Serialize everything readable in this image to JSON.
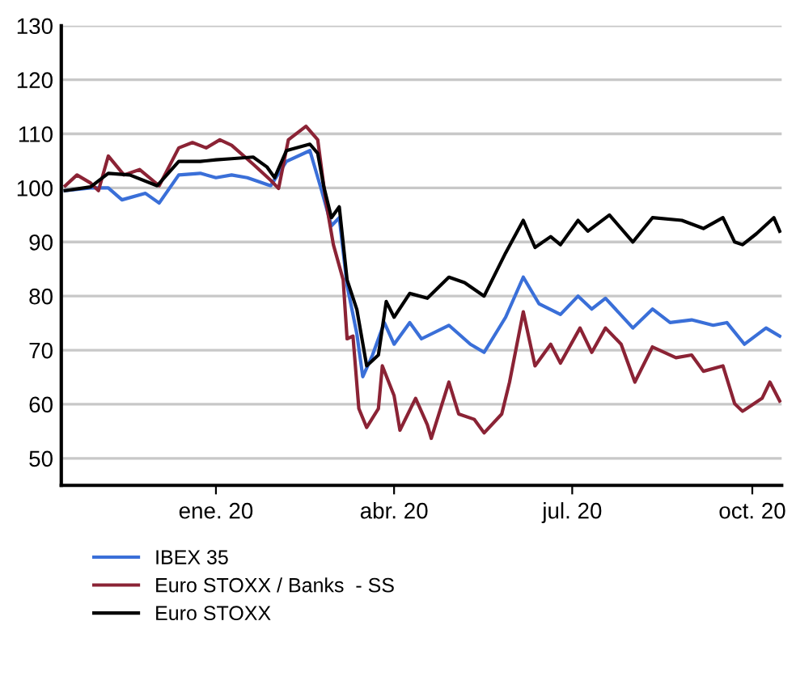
{
  "chart_data": {
    "type": "line",
    "xlim": [
      "2019-10-14",
      "2020-10-16"
    ],
    "xticks": [
      {
        "value": "2020-01-01",
        "label": "ene. 20"
      },
      {
        "value": "2020-04-01",
        "label": "abr. 20"
      },
      {
        "value": "2020-07-01",
        "label": "jul. 20"
      },
      {
        "value": "2020-10-01",
        "label": "oct. 20"
      }
    ],
    "ylim": [
      45,
      130
    ],
    "yticks": [
      50,
      60,
      70,
      80,
      90,
      100,
      110,
      120,
      130
    ],
    "grid": "y",
    "legend": "bottom left",
    "marker": "none",
    "line_style": "solid",
    "series": [
      {
        "name": "IBEX 35",
        "color": "#3a6fd8",
        "x": [
          "2019-10-16",
          "2019-10-29",
          "2019-11-07",
          "2019-11-14",
          "2019-11-26",
          "2019-12-03",
          "2019-12-13",
          "2019-12-24",
          "2020-01-01",
          "2020-01-09",
          "2020-01-17",
          "2020-01-29",
          "2020-02-06",
          "2020-02-18",
          "2020-02-24",
          "2020-02-29",
          "2020-03-04",
          "2020-03-08",
          "2020-03-13",
          "2020-03-16",
          "2020-03-21",
          "2020-03-27",
          "2020-04-01",
          "2020-04-09",
          "2020-04-15",
          "2020-04-29",
          "2020-05-10",
          "2020-05-17",
          "2020-05-28",
          "2020-06-06",
          "2020-06-14",
          "2020-06-25",
          "2020-07-04",
          "2020-07-11",
          "2020-07-18",
          "2020-08-01",
          "2020-08-11",
          "2020-08-20",
          "2020-08-31",
          "2020-09-11",
          "2020-09-18",
          "2020-09-27",
          "2020-10-08",
          "2020-10-15"
        ],
        "values": [
          99.5,
          100.0,
          100.0,
          97.8,
          99.0,
          97.2,
          102.4,
          102.7,
          101.9,
          102.4,
          101.9,
          100.4,
          104.9,
          106.9,
          99.5,
          93.0,
          94.5,
          82.0,
          73.0,
          65.1,
          69.1,
          75.1,
          71.1,
          75.1,
          72.1,
          74.6,
          71.1,
          69.6,
          76.1,
          83.5,
          78.6,
          76.6,
          80.0,
          77.6,
          79.6,
          74.1,
          77.6,
          75.1,
          75.6,
          74.6,
          75.1,
          71.1,
          74.1,
          72.6
        ]
      },
      {
        "name": "Euro STOXX / Banks  - SS",
        "color": "#8b2335",
        "x": [
          "2019-10-16",
          "2019-10-22",
          "2019-10-29",
          "2019-11-02",
          "2019-11-07",
          "2019-11-15",
          "2019-11-23",
          "2019-12-03",
          "2019-12-13",
          "2019-12-20",
          "2019-12-27",
          "2020-01-03",
          "2020-01-09",
          "2020-01-20",
          "2020-01-29",
          "2020-02-02",
          "2020-02-07",
          "2020-02-16",
          "2020-02-22",
          "2020-02-26",
          "2020-03-01",
          "2020-03-06",
          "2020-03-08",
          "2020-03-11",
          "2020-03-14",
          "2020-03-18",
          "2020-03-24",
          "2020-03-26",
          "2020-04-01",
          "2020-04-04",
          "2020-04-12",
          "2020-04-18",
          "2020-04-20",
          "2020-04-29",
          "2020-05-04",
          "2020-05-12",
          "2020-05-17",
          "2020-05-26",
          "2020-05-30",
          "2020-06-06",
          "2020-06-12",
          "2020-06-20",
          "2020-06-25",
          "2020-07-05",
          "2020-07-11",
          "2020-07-18",
          "2020-07-26",
          "2020-08-02",
          "2020-08-11",
          "2020-08-23",
          "2020-08-31",
          "2020-09-06",
          "2020-09-16",
          "2020-09-22",
          "2020-09-26",
          "2020-10-06",
          "2020-10-10",
          "2020-10-15"
        ],
        "values": [
          100.4,
          102.4,
          100.9,
          99.5,
          105.9,
          102.4,
          103.4,
          100.4,
          107.4,
          108.4,
          107.4,
          108.9,
          107.9,
          104.4,
          101.4,
          99.9,
          108.9,
          111.4,
          108.9,
          97.9,
          89.5,
          83.0,
          72.1,
          72.6,
          59.2,
          55.7,
          59.2,
          67.1,
          61.6,
          55.2,
          61.1,
          56.2,
          53.7,
          64.1,
          58.2,
          57.2,
          54.7,
          58.2,
          64.1,
          77.1,
          67.1,
          71.1,
          67.6,
          74.1,
          69.6,
          74.1,
          71.1,
          64.1,
          70.6,
          68.6,
          69.1,
          66.1,
          67.1,
          60.1,
          58.7,
          61.1,
          64.1,
          60.6
        ]
      },
      {
        "name": "Euro STOXX",
        "color": "#000000",
        "x": [
          "2019-10-16",
          "2019-10-29",
          "2019-11-07",
          "2019-11-18",
          "2019-12-02",
          "2019-12-13",
          "2019-12-24",
          "2020-01-01",
          "2020-01-09",
          "2020-01-20",
          "2020-01-27",
          "2020-01-31",
          "2020-02-06",
          "2020-02-18",
          "2020-02-22",
          "2020-02-25",
          "2020-02-29",
          "2020-03-04",
          "2020-03-08",
          "2020-03-13",
          "2020-03-18",
          "2020-03-24",
          "2020-03-28",
          "2020-04-01",
          "2020-04-09",
          "2020-04-18",
          "2020-04-29",
          "2020-05-07",
          "2020-05-17",
          "2020-05-28",
          "2020-06-06",
          "2020-06-12",
          "2020-06-20",
          "2020-06-25",
          "2020-07-04",
          "2020-07-09",
          "2020-07-20",
          "2020-08-01",
          "2020-08-11",
          "2020-08-26",
          "2020-09-06",
          "2020-09-16",
          "2020-09-22",
          "2020-09-26",
          "2020-10-03",
          "2020-10-12",
          "2020-10-15"
        ],
        "values": [
          99.5,
          100.2,
          102.7,
          102.4,
          100.4,
          104.9,
          104.9,
          105.2,
          105.4,
          105.7,
          103.9,
          101.9,
          106.9,
          108.1,
          106.4,
          100.4,
          94.5,
          96.5,
          83.0,
          77.5,
          67.1,
          69.1,
          79.0,
          76.1,
          80.5,
          79.6,
          83.5,
          82.5,
          80.0,
          88.0,
          94.0,
          89.0,
          91.0,
          89.5,
          94.0,
          92.0,
          95.0,
          90.0,
          94.5,
          94.0,
          92.5,
          94.5,
          90.0,
          89.5,
          91.5,
          94.5,
          92.0
        ]
      }
    ]
  }
}
